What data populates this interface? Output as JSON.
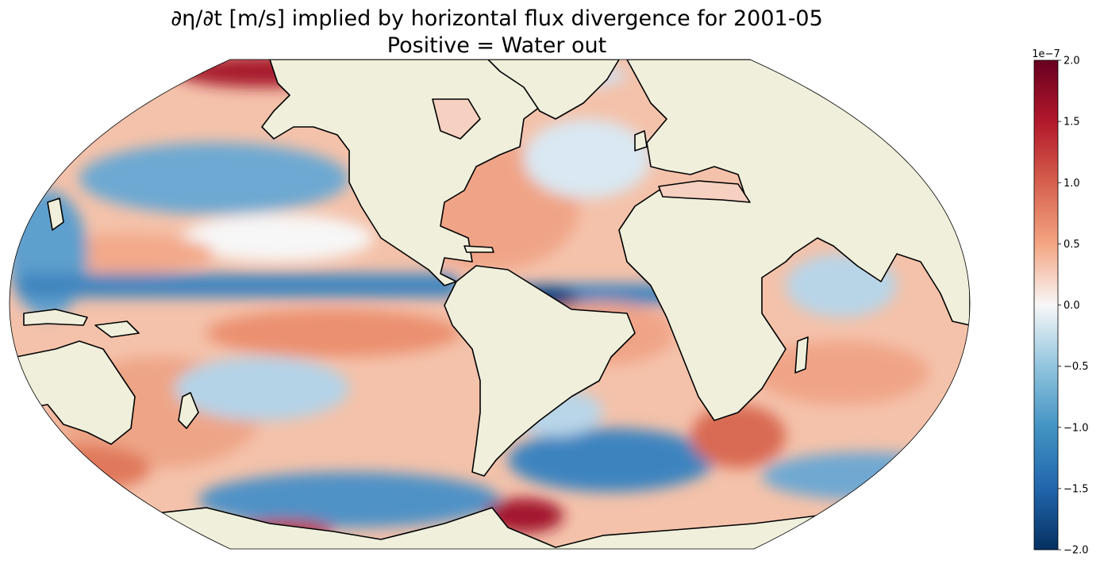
{
  "title": {
    "line1": "∂η/∂t [m/s] implied by horizontal flux divergence for 2001-05",
    "line2": "Positive = Water out"
  },
  "colorbar": {
    "exponent_label": "1e−7",
    "ticks": [
      "2.0",
      "1.5",
      "1.0",
      "0.5",
      "0.0",
      "−0.5",
      "−1.0",
      "−1.5",
      "−2.0"
    ],
    "range": [
      -2.0,
      2.0
    ],
    "colormap": "RdBu_r"
  },
  "colors": {
    "land": "#efefdb",
    "coast": "#000000",
    "deep_red": "#8b0a26",
    "red": "#d6604d",
    "light_red": "#f4a582",
    "white": "#f7f7f7",
    "light_blue": "#92c5de",
    "blue": "#4393c3",
    "deep_blue": "#08306b"
  },
  "map": {
    "projection": "Robinson",
    "land_fill": "natural-earth-land",
    "coastlines": "black"
  }
}
